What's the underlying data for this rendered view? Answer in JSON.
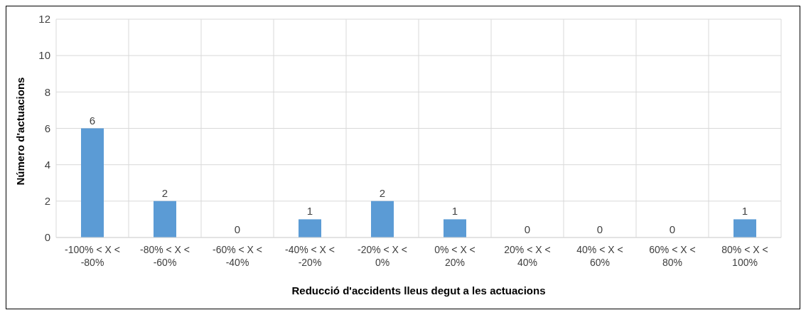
{
  "chart_data": {
    "type": "bar",
    "xlabel": "Reducció d'accidents lleus degut a les actuacions",
    "ylabel": "Número d'actuacions",
    "categories": [
      "-100% < X < -80%",
      "-80% < X < -60%",
      "-60% < X < -40%",
      "-40% < X < -20%",
      "-20% < X < 0%",
      "0% < X < 20%",
      "20% < X < 40%",
      "40% < X < 60%",
      "60% < X < 80%",
      "80% < X < 100%"
    ],
    "values": [
      6,
      2,
      0,
      1,
      2,
      1,
      0,
      0,
      0,
      1
    ],
    "color": "#5b9bd5",
    "ylim": [
      0,
      12
    ],
    "yticks": [
      0,
      2,
      4,
      6,
      8,
      10,
      12
    ],
    "grid": true,
    "data_labels": true
  }
}
